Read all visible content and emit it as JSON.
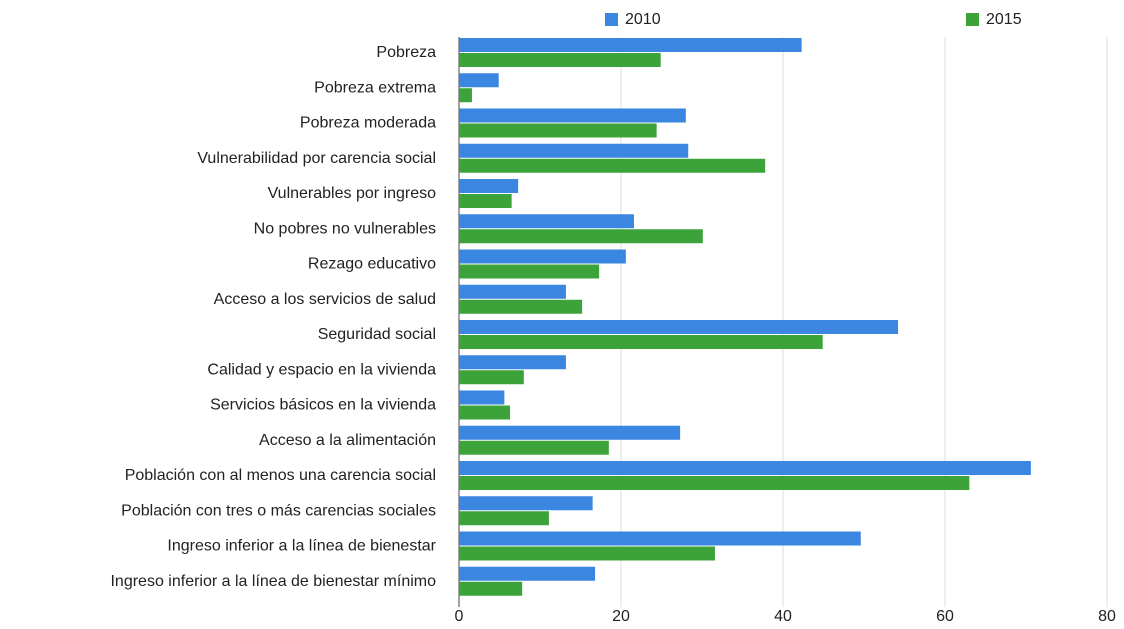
{
  "chart_data": {
    "type": "bar",
    "orientation": "horizontal",
    "categories": [
      "Pobreza",
      "Pobreza extrema",
      "Pobreza moderada",
      "Vulnerabilidad por carencia social",
      "Vulnerables por ingreso",
      "No pobres no vulnerables",
      "Rezago educativo",
      "Acceso a los servicios de salud",
      "Seguridad social",
      "Calidad y espacio en la vivienda",
      "Servicios básicos en la vivienda",
      "Acceso a la alimentación",
      "Población con al menos una carencia social",
      "Población con tres o más carencias sociales",
      "Ingreso inferior a la línea de bienestar",
      "Ingreso inferior a la línea de bienestar mínimo"
    ],
    "series": [
      {
        "name": "2010",
        "color": "#3a86e0",
        "values": [
          42.3,
          4.9,
          28.0,
          28.3,
          7.3,
          21.6,
          20.6,
          13.2,
          54.2,
          13.2,
          5.6,
          27.3,
          70.6,
          16.5,
          49.6,
          16.8
        ]
      },
      {
        "name": "2015",
        "color": "#3ca33a",
        "values": [
          24.9,
          1.6,
          24.4,
          37.8,
          6.5,
          30.1,
          17.3,
          15.2,
          44.9,
          8.0,
          6.3,
          18.5,
          63.0,
          11.1,
          31.6,
          7.8
        ]
      }
    ],
    "xlim": [
      0,
      80
    ],
    "xticks": [
      0,
      20,
      40,
      60,
      80
    ],
    "grid": true,
    "legend": "top"
  }
}
